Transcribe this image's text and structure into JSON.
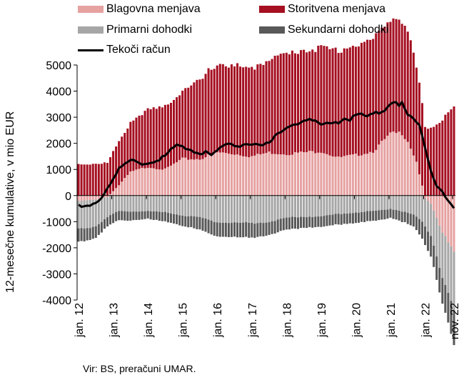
{
  "chart_data": {
    "type": "bar",
    "subtype": "stacked bar with line",
    "title": "",
    "ylabel": "12-mesečne kumulative, v mio EUR",
    "ylim": [
      -4000,
      5000
    ],
    "yticks": [
      5000,
      4000,
      3000,
      2000,
      1000,
      0,
      -1000,
      -2000,
      -3000,
      -4000
    ],
    "grid": false,
    "legend_position": "top",
    "source": "Vir: BS, preračuni UMAR.",
    "x_tick_labels": [
      "jan. 12",
      "jan. 13",
      "jan. 14",
      "jan. 15",
      "jan. 16",
      "jan. 17",
      "jan. 18",
      "jan. 19",
      "jan. 20",
      "jan. 21",
      "jan. 22",
      "nov. 22"
    ],
    "x_tick_months": [
      0,
      12,
      24,
      36,
      48,
      60,
      72,
      84,
      96,
      108,
      120,
      130
    ],
    "colors": {
      "Blagovna menjava": "#e6a1a1",
      "Storitvena menjava": "#a50f21",
      "Primarni dohodki": "#a6a6a6",
      "Sekundarni dohodki": "#595959",
      "Tekoči račun": "#000000"
    },
    "series": [
      {
        "name": "Blagovna menjava",
        "kind": "bar",
        "keys_x": [
          0,
          6,
          10,
          14,
          18,
          24,
          30,
          36,
          42,
          48,
          54,
          60,
          66,
          72,
          78,
          84,
          90,
          96,
          102,
          108,
          112,
          114,
          117,
          120,
          122,
          126,
          130
        ],
        "keys_y": [
          -200,
          -150,
          -50,
          400,
          900,
          1100,
          1000,
          1400,
          1400,
          1650,
          1600,
          1500,
          1650,
          1600,
          1650,
          1700,
          1450,
          1550,
          1700,
          2350,
          2400,
          2100,
          1300,
          -100,
          -300,
          -1400,
          -2200
        ]
      },
      {
        "name": "Storitvena menjava",
        "kind": "bar",
        "keys_x": [
          0,
          10,
          12,
          18,
          24,
          36,
          48,
          60,
          72,
          84,
          96,
          108,
          112,
          115,
          118,
          120,
          122,
          126,
          130
        ],
        "keys_y": [
          1200,
          1250,
          1500,
          1900,
          2200,
          2600,
          3400,
          3350,
          3850,
          4000,
          4200,
          4400,
          4350,
          4000,
          3400,
          2700,
          2600,
          2900,
          3400
        ]
      },
      {
        "name": "Primarni dohodki",
        "kind": "bar",
        "keys_x": [
          0,
          6,
          10,
          14,
          18,
          24,
          30,
          36,
          42,
          48,
          54,
          60,
          66,
          72,
          78,
          84,
          90,
          96,
          102,
          108,
          112,
          116,
          120,
          122,
          126,
          130
        ],
        "keys_y": [
          -1100,
          -1000,
          -800,
          -600,
          -600,
          -600,
          -650,
          -750,
          -850,
          -1000,
          -1050,
          -1050,
          -1000,
          -850,
          -800,
          -800,
          -700,
          -650,
          -600,
          -500,
          -600,
          -750,
          -1100,
          -1200,
          -1700,
          -2300
        ]
      },
      {
        "name": "Sekundarni dohodki",
        "kind": "bar",
        "keys_x": [
          0,
          6,
          10,
          14,
          18,
          24,
          36,
          48,
          60,
          72,
          84,
          96,
          108,
          116,
          120,
          122,
          126,
          130
        ],
        "keys_y": [
          -500,
          -450,
          -350,
          -350,
          -350,
          -300,
          -400,
          -550,
          -550,
          -450,
          -400,
          -400,
          -350,
          -450,
          -700,
          -800,
          -1000,
          -1300
        ]
      },
      {
        "name": "Tekoči račun",
        "kind": "line",
        "keys_x": [
          0,
          1,
          4,
          6,
          8,
          10,
          12,
          14,
          16,
          18,
          20,
          22,
          24,
          26,
          30,
          32,
          34,
          36,
          38,
          42,
          44,
          46,
          48,
          50,
          52,
          56,
          58,
          60,
          62,
          64,
          66,
          68,
          72,
          74,
          76,
          78,
          80,
          82,
          84,
          86,
          88,
          90,
          92,
          94,
          96,
          98,
          100,
          102,
          104,
          106,
          108,
          110,
          111,
          112,
          114,
          116,
          118,
          120,
          122,
          124,
          126,
          128,
          130
        ],
        "keys_y": [
          -400,
          -450,
          -400,
          -300,
          -50,
          300,
          650,
          1000,
          1200,
          1350,
          1300,
          1200,
          1250,
          1300,
          1500,
          1750,
          1900,
          1850,
          1800,
          1600,
          1650,
          1500,
          1700,
          1900,
          2000,
          1900,
          2000,
          1900,
          1950,
          1900,
          2050,
          2300,
          2650,
          2650,
          2700,
          2850,
          2900,
          2900,
          2750,
          2800,
          2800,
          2750,
          2900,
          2850,
          3150,
          3150,
          3050,
          3200,
          3100,
          3200,
          3500,
          3550,
          3450,
          3600,
          3100,
          3000,
          2700,
          1800,
          900,
          300,
          200,
          -200,
          -450
        ]
      }
    ]
  }
}
